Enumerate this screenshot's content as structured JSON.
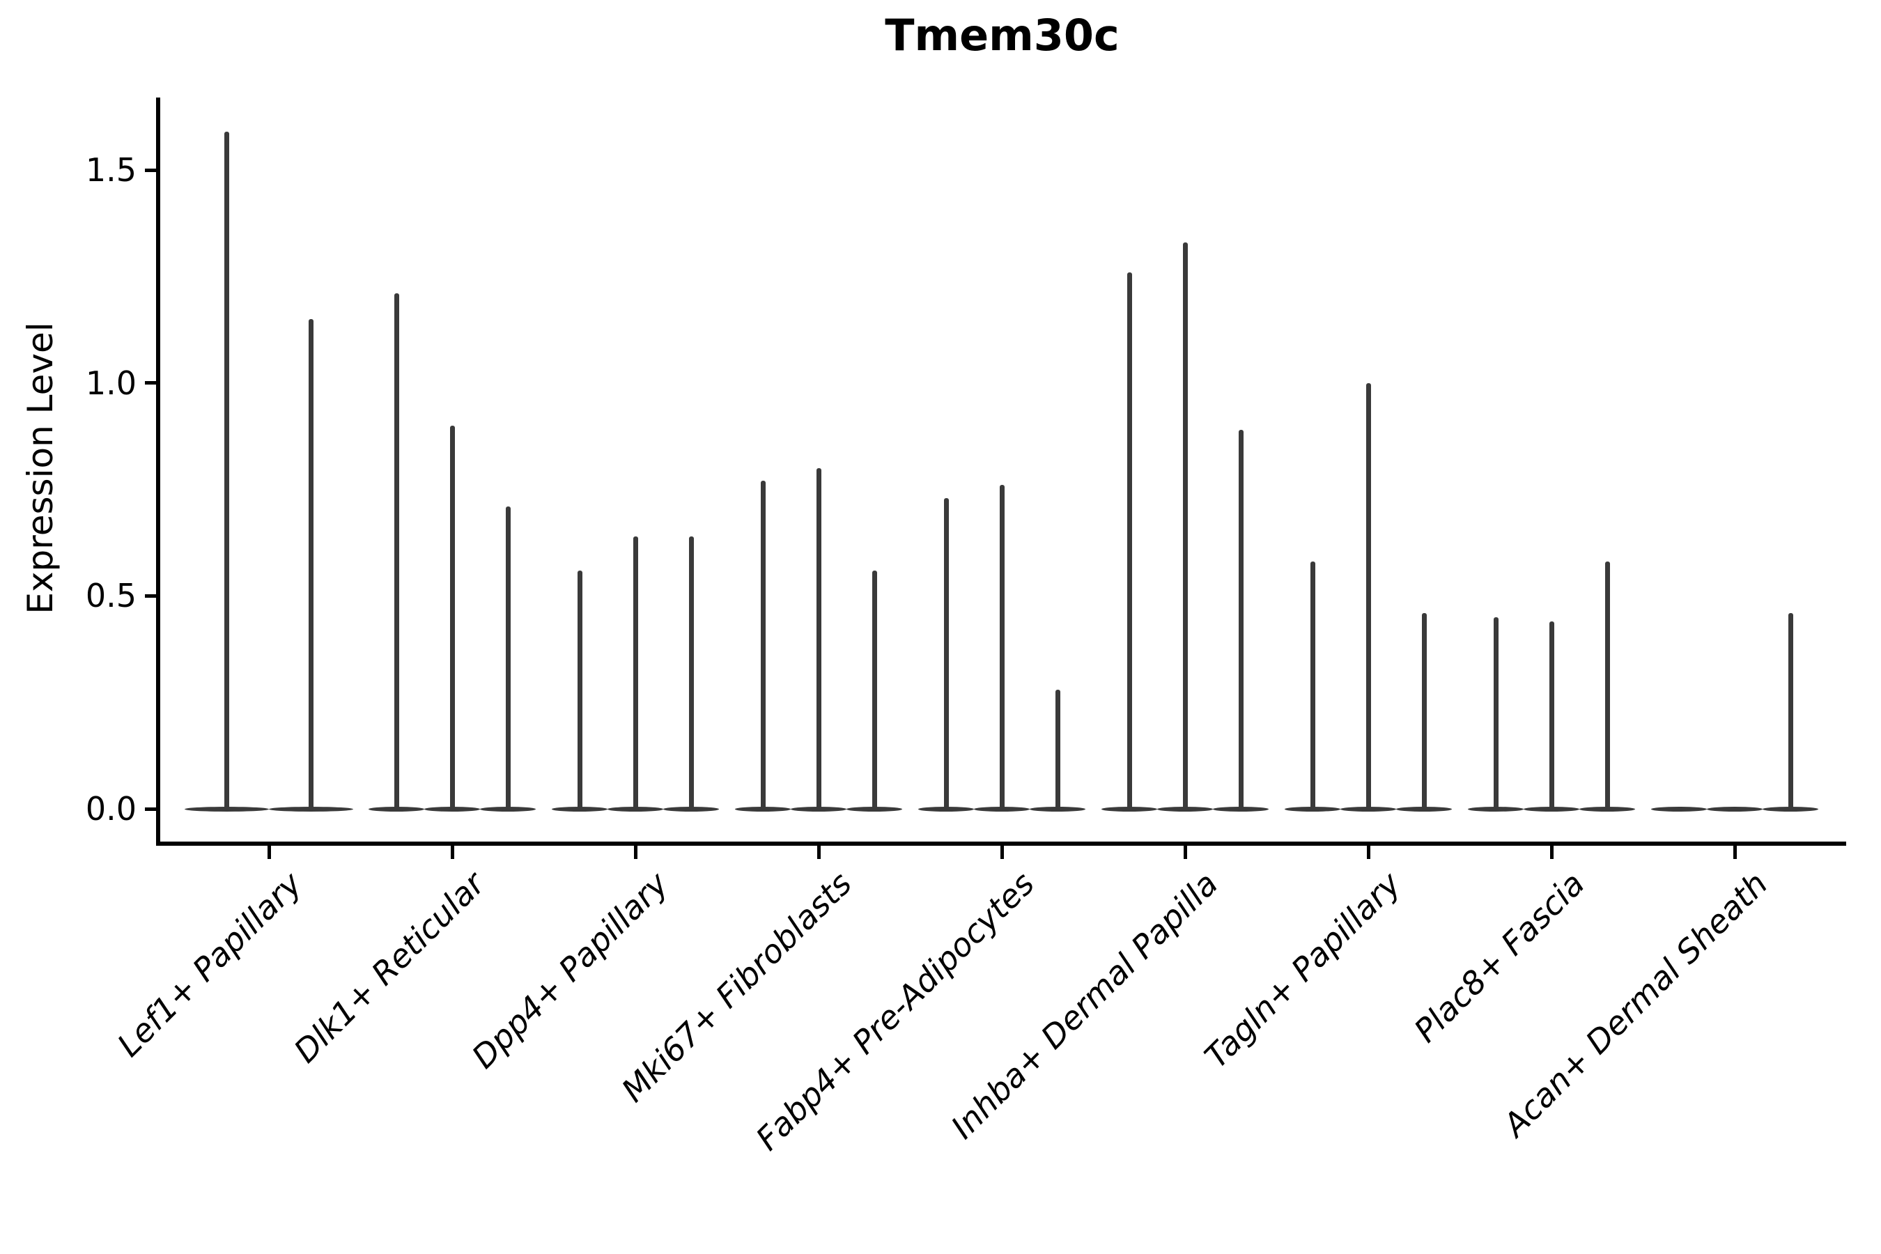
{
  "chart_data": {
    "type": "violin",
    "title": "Tmem30c",
    "ylabel": "Expression Level",
    "xlabel": "",
    "ylim": [
      0,
      1.65
    ],
    "yticks": [
      0.0,
      0.5,
      1.0,
      1.5
    ],
    "ytick_labels": [
      "0.0",
      "0.5",
      "1.0",
      "1.5"
    ],
    "grid": false,
    "legend_position": "none",
    "background_color": "#ffffff",
    "categories": [
      "Lef1+ Papillary",
      "Dlk1+ Reticular",
      "Dpp4+ Papillary",
      "Mki67+ Fibroblasts",
      "Fabp4+ Pre-Adipocytes",
      "Inhba+ Dermal Papilla",
      "Tagln+ Papillary",
      "Plac8+ Fascia",
      "Acan+ Dermal Sheath"
    ],
    "groups": [
      {
        "category": "Lef1+ Papillary",
        "violin_max_values": [
          1.59,
          1.15
        ]
      },
      {
        "category": "Dlk1+ Reticular",
        "violin_max_values": [
          1.21,
          0.9,
          0.71
        ]
      },
      {
        "category": "Dpp4+ Papillary",
        "violin_max_values": [
          0.56,
          0.64,
          0.64
        ]
      },
      {
        "category": "Mki67+ Fibroblasts",
        "violin_max_values": [
          0.77,
          0.8,
          0.56
        ]
      },
      {
        "category": "Fabp4+ Pre-Adipocytes",
        "violin_max_values": [
          0.73,
          0.76,
          0.28
        ]
      },
      {
        "category": "Inhba+ Dermal Papilla",
        "violin_max_values": [
          1.26,
          1.33,
          0.89
        ]
      },
      {
        "category": "Tagln+ Papillary",
        "violin_max_values": [
          0.58,
          1.0,
          0.46
        ]
      },
      {
        "category": "Plac8+ Fascia",
        "violin_max_values": [
          0.45,
          0.44,
          0.58
        ]
      },
      {
        "category": "Acan+ Dermal Sheath",
        "violin_max_values": [
          0.0,
          0.0,
          0.46
        ]
      }
    ],
    "style_note": "violins collapsed to flat baseline lenses at 0 with thin vertical density spikes to max value",
    "colors": {
      "violin_outline": "#3a3a3a",
      "axis": "#000000",
      "text": "#000000"
    }
  }
}
